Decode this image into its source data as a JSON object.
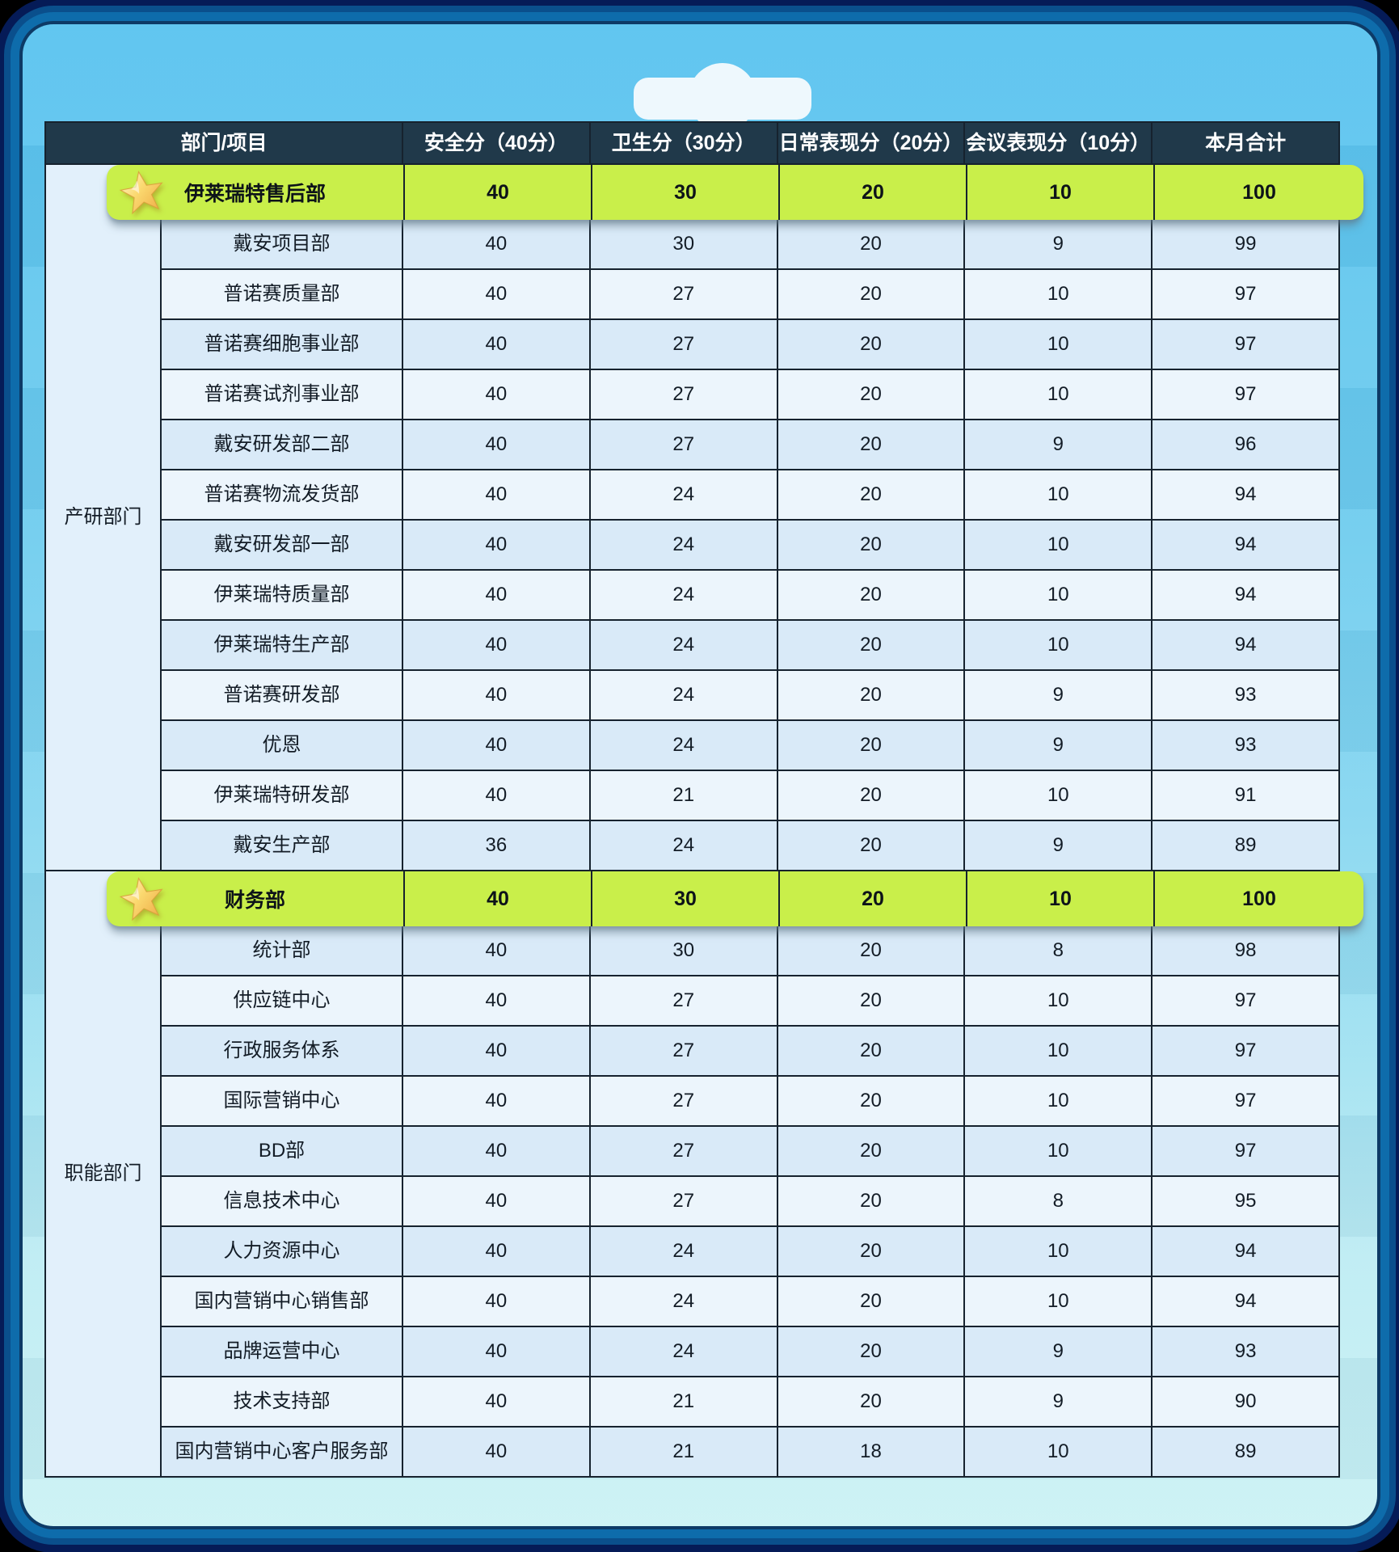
{
  "clip": {
    "description": "clipboard-clip"
  },
  "table": {
    "columns": [
      "部门/项目",
      "安全分（40分）",
      "卫生分（30分）",
      "日常表现分（20分）",
      "会议表现分（10分）",
      "本月合计"
    ],
    "groups": [
      {
        "label": "产研部门",
        "rows": [
          {
            "name": "伊莱瑞特售后部",
            "scores": [
              40,
              30,
              20,
              10,
              100
            ],
            "highlighted": true
          },
          {
            "name": "戴安项目部",
            "scores": [
              40,
              30,
              20,
              9,
              99
            ],
            "highlighted": false
          },
          {
            "name": "普诺赛质量部",
            "scores": [
              40,
              27,
              20,
              10,
              97
            ],
            "highlighted": false
          },
          {
            "name": "普诺赛细胞事业部",
            "scores": [
              40,
              27,
              20,
              10,
              97
            ],
            "highlighted": false
          },
          {
            "name": "普诺赛试剂事业部",
            "scores": [
              40,
              27,
              20,
              10,
              97
            ],
            "highlighted": false
          },
          {
            "name": "戴安研发部二部",
            "scores": [
              40,
              27,
              20,
              9,
              96
            ],
            "highlighted": false
          },
          {
            "name": "普诺赛物流发货部",
            "scores": [
              40,
              24,
              20,
              10,
              94
            ],
            "highlighted": false
          },
          {
            "name": "戴安研发部一部",
            "scores": [
              40,
              24,
              20,
              10,
              94
            ],
            "highlighted": false
          },
          {
            "name": "伊莱瑞特质量部",
            "scores": [
              40,
              24,
              20,
              10,
              94
            ],
            "highlighted": false
          },
          {
            "name": "伊莱瑞特生产部",
            "scores": [
              40,
              24,
              20,
              10,
              94
            ],
            "highlighted": false
          },
          {
            "name": "普诺赛研发部",
            "scores": [
              40,
              24,
              20,
              9,
              93
            ],
            "highlighted": false
          },
          {
            "name": "优恩",
            "scores": [
              40,
              24,
              20,
              9,
              93
            ],
            "highlighted": false
          },
          {
            "name": "伊莱瑞特研发部",
            "scores": [
              40,
              21,
              20,
              10,
              91
            ],
            "highlighted": false
          },
          {
            "name": "戴安生产部",
            "scores": [
              36,
              24,
              20,
              9,
              89
            ],
            "highlighted": false
          }
        ]
      },
      {
        "label": "职能部门",
        "rows": [
          {
            "name": "财务部",
            "scores": [
              40,
              30,
              20,
              10,
              100
            ],
            "highlighted": true
          },
          {
            "name": "统计部",
            "scores": [
              40,
              30,
              20,
              8,
              98
            ],
            "highlighted": false
          },
          {
            "name": "供应链中心",
            "scores": [
              40,
              27,
              20,
              10,
              97
            ],
            "highlighted": false
          },
          {
            "name": "行政服务体系",
            "scores": [
              40,
              27,
              20,
              10,
              97
            ],
            "highlighted": false
          },
          {
            "name": "国际营销中心",
            "scores": [
              40,
              27,
              20,
              10,
              97
            ],
            "highlighted": false
          },
          {
            "name": "BD部",
            "scores": [
              40,
              27,
              20,
              10,
              97
            ],
            "highlighted": false
          },
          {
            "name": "信息技术中心",
            "scores": [
              40,
              27,
              20,
              8,
              95
            ],
            "highlighted": false
          },
          {
            "name": "人力资源中心",
            "scores": [
              40,
              24,
              20,
              10,
              94
            ],
            "highlighted": false
          },
          {
            "name": "国内营销中心销售部",
            "scores": [
              40,
              24,
              20,
              10,
              94
            ],
            "highlighted": false
          },
          {
            "name": "品牌运营中心",
            "scores": [
              40,
              24,
              20,
              9,
              93
            ],
            "highlighted": false
          },
          {
            "name": "技术支持部",
            "scores": [
              40,
              21,
              20,
              9,
              90
            ],
            "highlighted": false
          },
          {
            "name": "国内营销中心客户服务部",
            "scores": [
              40,
              21,
              18,
              10,
              89
            ],
            "highlighted": false
          }
        ]
      }
    ]
  },
  "icons": {
    "highlight_marker": "star-icon"
  },
  "colors": {
    "header_bg": "#20394a",
    "header_text": "#ffffff",
    "row_dark": "#d9eaf8",
    "row_light": "#ecf5fc",
    "group_cell_bg": "#e2f0fb",
    "highlight_bg": "#c9ef4a",
    "border": "#16222e",
    "panel_top": "#57c2ef",
    "panel_bottom": "#cbf2f4",
    "frame_blue": "#0e6cab",
    "frame_navy": "#051b57",
    "clip": "#eef8fd",
    "star_gold": "#f3b54d"
  }
}
